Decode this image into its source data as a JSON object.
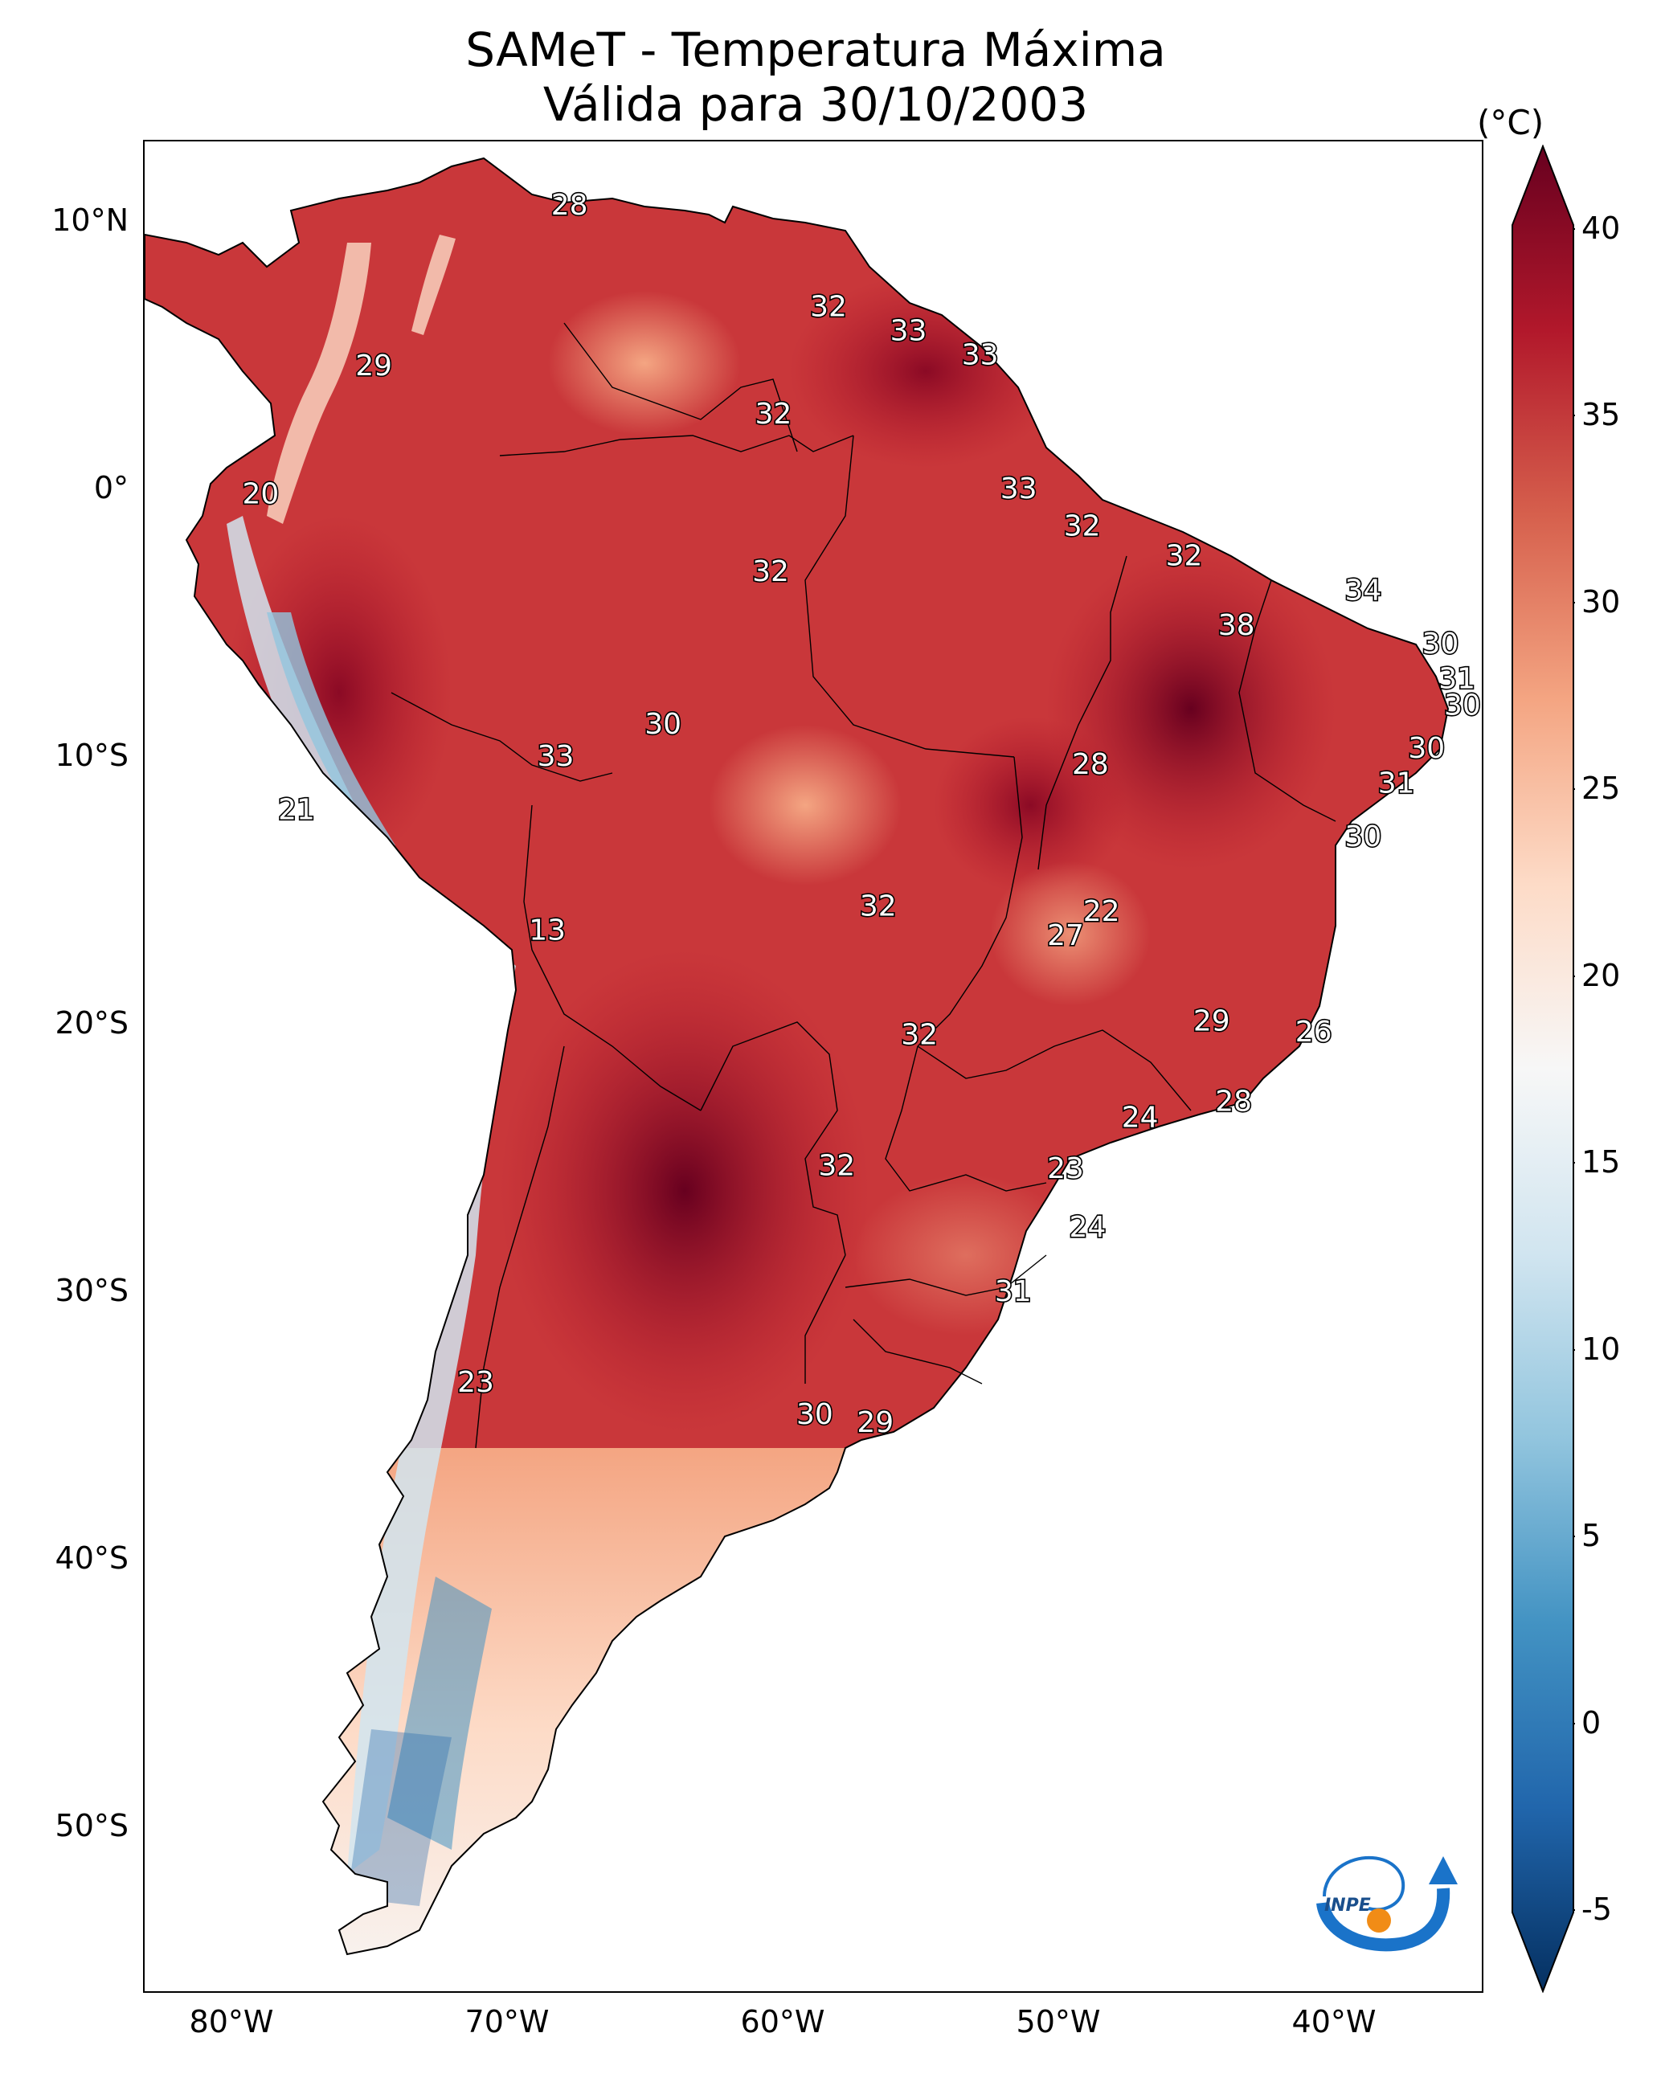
{
  "title": {
    "line1": "SAMeT - Temperatura Máxima",
    "line2": "Válida para 30/10/2003"
  },
  "colorbar": {
    "unit": "(°C)",
    "ticks": [
      "40",
      "35",
      "30",
      "25",
      "20",
      "15",
      "10",
      "5",
      "0",
      "-5"
    ],
    "min": -5,
    "max": 40,
    "colors": [
      "#053061",
      "#2166ac",
      "#4393c3",
      "#92c5de",
      "#d1e5f0",
      "#f7f7f7",
      "#fddbc7",
      "#f4a582",
      "#d6604d",
      "#b2182b",
      "#67001f"
    ]
  },
  "axes": {
    "lat_ticks": [
      "10°N",
      "0°",
      "10°S",
      "20°S",
      "30°S",
      "40°S",
      "50°S"
    ],
    "lon_ticks": [
      "80°W",
      "70°W",
      "60°W",
      "50°W",
      "40°W"
    ]
  },
  "station_labels": [
    {
      "text": "28",
      "lon": -67.3,
      "lat": 10.6
    },
    {
      "text": "32",
      "lon": -57.9,
      "lat": 6.8
    },
    {
      "text": "33",
      "lon": -55.0,
      "lat": 5.9
    },
    {
      "text": "33",
      "lon": -52.4,
      "lat": 5.0
    },
    {
      "text": "29",
      "lon": -74.4,
      "lat": 4.6
    },
    {
      "text": "32",
      "lon": -59.9,
      "lat": 2.8
    },
    {
      "text": "33",
      "lon": -51.0,
      "lat": 0.0
    },
    {
      "text": "20",
      "lon": -78.5,
      "lat": -0.2
    },
    {
      "text": "32",
      "lon": -48.7,
      "lat": -1.4
    },
    {
      "text": "32",
      "lon": -45.0,
      "lat": -2.5
    },
    {
      "text": "32",
      "lon": -60.0,
      "lat": -3.1
    },
    {
      "text": "34",
      "lon": -38.5,
      "lat": -3.8
    },
    {
      "text": "38",
      "lon": -43.1,
      "lat": -5.1
    },
    {
      "text": "30",
      "lon": -35.7,
      "lat": -5.8
    },
    {
      "text": "31",
      "lon": -35.1,
      "lat": -7.1
    },
    {
      "text": "30",
      "lon": -34.9,
      "lat": -8.1
    },
    {
      "text": "30",
      "lon": -63.9,
      "lat": -8.8
    },
    {
      "text": "30",
      "lon": -36.2,
      "lat": -9.7
    },
    {
      "text": "33",
      "lon": -67.8,
      "lat": -10.0
    },
    {
      "text": "28",
      "lon": -48.4,
      "lat": -10.3
    },
    {
      "text": "31",
      "lon": -37.3,
      "lat": -11.0
    },
    {
      "text": "21",
      "lon": -77.2,
      "lat": -12.0
    },
    {
      "text": "30",
      "lon": -38.5,
      "lat": -13.0
    },
    {
      "text": "32",
      "lon": -56.1,
      "lat": -15.6
    },
    {
      "text": "22",
      "lon": -48.0,
      "lat": -15.8
    },
    {
      "text": "27",
      "lon": -49.3,
      "lat": -16.7
    },
    {
      "text": "13",
      "lon": -68.1,
      "lat": -16.5
    },
    {
      "text": "29",
      "lon": -44.0,
      "lat": -19.9
    },
    {
      "text": "26",
      "lon": -40.3,
      "lat": -20.3
    },
    {
      "text": "32",
      "lon": -54.6,
      "lat": -20.4
    },
    {
      "text": "28",
      "lon": -43.2,
      "lat": -22.9
    },
    {
      "text": "24",
      "lon": -46.6,
      "lat": -23.5
    },
    {
      "text": "32",
      "lon": -57.6,
      "lat": -25.3
    },
    {
      "text": "23",
      "lon": -49.3,
      "lat": -25.4
    },
    {
      "text": "24",
      "lon": -48.5,
      "lat": -27.6
    },
    {
      "text": "31",
      "lon": -51.2,
      "lat": -30.0
    },
    {
      "text": "23",
      "lon": -70.7,
      "lat": -33.4
    },
    {
      "text": "30",
      "lon": -58.4,
      "lat": -34.6
    },
    {
      "text": "29",
      "lon": -56.2,
      "lat": -34.9
    }
  ]
}
